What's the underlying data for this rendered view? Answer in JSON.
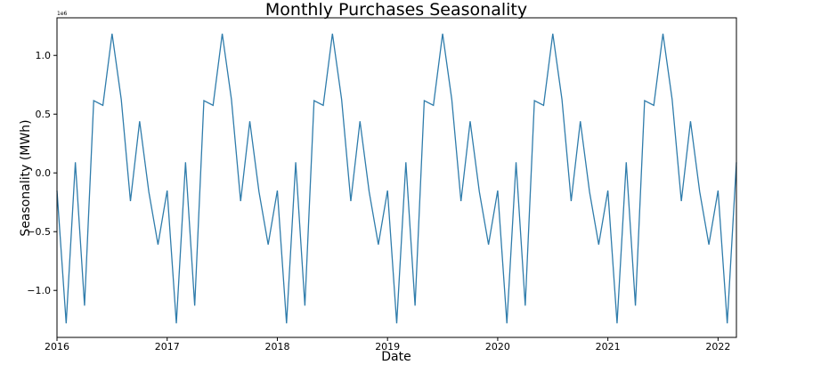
{
  "chart_data": {
    "type": "line",
    "title": "Monthly Purchases Seasonality",
    "xlabel": "Date",
    "ylabel": "Seasonality (MWh)",
    "y_scale_label": "1e6",
    "x_ticks": [
      "2016",
      "2017",
      "2018",
      "2019",
      "2020",
      "2021",
      "2022"
    ],
    "y_ticks": [
      "−1.0",
      "−0.5",
      "0.0",
      "0.5",
      "1.0"
    ],
    "y_tick_values": [
      -1000000,
      -500000,
      0,
      500000,
      1000000
    ],
    "xlim": [
      "2016-01",
      "2022-03"
    ],
    "ylim": [
      -1400000,
      1320000
    ],
    "grid": false,
    "color": "#2f7cab",
    "x_start": "2016-01",
    "seasonal_pattern": [
      -150000,
      -1280000,
      90000,
      -1130000,
      615000,
      575000,
      1185000,
      625000,
      -240000,
      440000,
      -160000,
      -610000
    ],
    "values": [
      -150000,
      -1280000,
      90000,
      -1130000,
      615000,
      575000,
      1185000,
      625000,
      -240000,
      440000,
      -160000,
      -610000,
      -150000,
      -1280000,
      90000,
      -1130000,
      615000,
      575000,
      1185000,
      625000,
      -240000,
      440000,
      -160000,
      -610000,
      -150000,
      -1280000,
      90000,
      -1130000,
      615000,
      575000,
      1185000,
      625000,
      -240000,
      440000,
      -160000,
      -610000,
      -150000,
      -1280000,
      90000,
      -1130000,
      615000,
      575000,
      1185000,
      625000,
      -240000,
      440000,
      -160000,
      -610000,
      -150000,
      -1280000,
      90000,
      -1130000,
      615000,
      575000,
      1185000,
      625000,
      -240000,
      440000,
      -160000,
      -610000,
      -150000,
      -1280000,
      90000,
      -1130000,
      615000,
      575000,
      1185000,
      625000,
      -240000,
      440000,
      -160000,
      -610000,
      -150000,
      -1280000,
      90000
    ]
  }
}
